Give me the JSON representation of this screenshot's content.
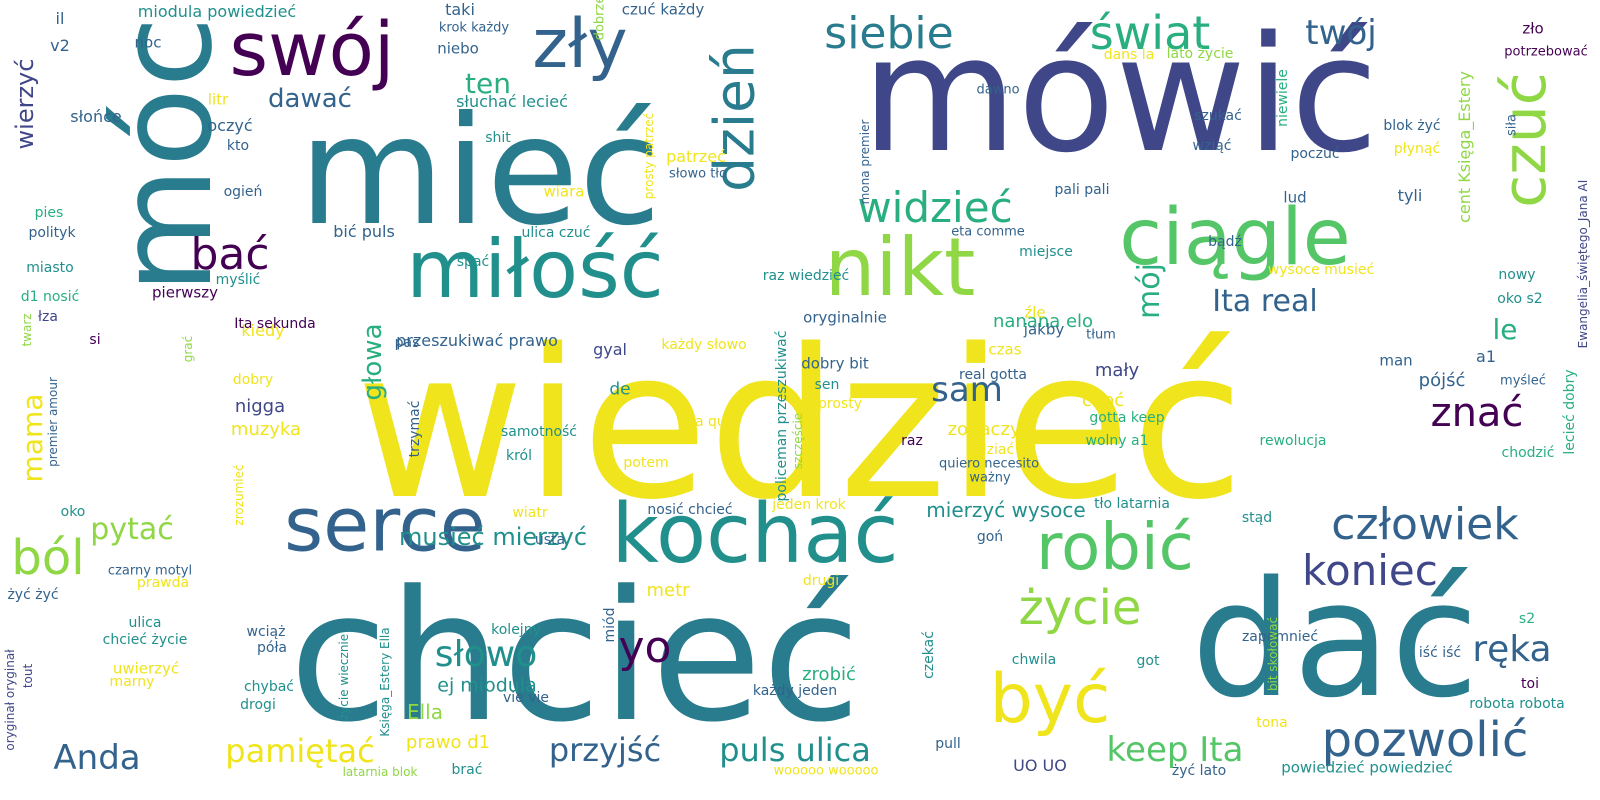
{
  "palette": {
    "yellow": "#f0e41c",
    "lime": "#8fd744",
    "green": "#55c667",
    "sea": "#29af7f",
    "teal": "#21908d",
    "steel": "#287c8e",
    "blue": "#33638d",
    "indigo": "#3f4788",
    "violet": "#440154"
  },
  "words": [
    {
      "t": "wiedzieć",
      "c": "yellow",
      "s": 1.0
    },
    {
      "t": "chcieć",
      "c": "steel",
      "s": 0.85
    },
    {
      "t": "mówić",
      "c": "indigo",
      "s": 0.76
    },
    {
      "t": "dać",
      "c": "steel",
      "s": 0.7
    },
    {
      "t": "mieć",
      "c": "steel",
      "s": 0.66
    },
    {
      "t": "móc",
      "c": "steel",
      "s": 0.52
    },
    {
      "t": "miłość",
      "c": "teal",
      "s": 0.36
    },
    {
      "t": "kochać",
      "c": "teal",
      "s": 0.36
    },
    {
      "t": "serce",
      "c": "blue",
      "s": 0.34
    },
    {
      "t": "nikt",
      "c": "lime",
      "s": 0.34
    },
    {
      "t": "ciągle",
      "c": "green",
      "s": 0.33
    },
    {
      "t": "swój",
      "c": "violet",
      "s": 0.31
    },
    {
      "t": "zły",
      "c": "blue",
      "s": 0.29
    },
    {
      "t": "być",
      "c": "yellow",
      "s": 0.29
    },
    {
      "t": "robić",
      "c": "green",
      "s": 0.28
    },
    {
      "t": "czuć",
      "c": "lime",
      "s": 0.26
    },
    {
      "t": "dzień",
      "c": "steel",
      "s": 0.25
    },
    {
      "t": "świat",
      "c": "sea",
      "s": 0.2
    },
    {
      "t": "pozwolić",
      "c": "blue",
      "s": 0.2
    },
    {
      "t": "życie",
      "c": "lime",
      "s": 0.2
    },
    {
      "t": "ból",
      "c": "lime",
      "s": 0.2
    },
    {
      "t": "siebie",
      "c": "steel",
      "s": 0.18
    },
    {
      "t": "człowiek",
      "c": "blue",
      "s": 0.18
    },
    {
      "t": "koniec",
      "c": "indigo",
      "s": 0.18
    },
    {
      "t": "widzieć",
      "c": "sea",
      "s": 0.18
    },
    {
      "t": "bać",
      "c": "violet",
      "s": 0.18
    },
    {
      "t": "yo",
      "c": "violet",
      "s": 0.18
    },
    {
      "t": "znać",
      "c": "violet",
      "s": 0.17
    },
    {
      "t": "słowo",
      "c": "teal",
      "s": 0.15
    },
    {
      "t": "keep Ita",
      "c": "green",
      "s": 0.14
    },
    {
      "t": "puls ulica",
      "c": "teal",
      "s": 0.14
    },
    {
      "t": "przyjść",
      "c": "blue",
      "s": 0.14
    },
    {
      "t": "pamiętać",
      "c": "yellow",
      "s": 0.14
    },
    {
      "t": "ręka",
      "c": "blue",
      "s": 0.14
    },
    {
      "t": "Anda",
      "c": "blue",
      "s": 0.14
    },
    {
      "t": "twój",
      "c": "blue",
      "s": 0.13
    },
    {
      "t": "Ita real",
      "c": "blue",
      "s": 0.13
    },
    {
      "t": "sam",
      "c": "blue",
      "s": 0.13
    },
    {
      "t": "mój",
      "c": "sea",
      "s": 0.13
    },
    {
      "t": "ten",
      "c": "sea",
      "s": 0.12
    },
    {
      "t": "pytać",
      "c": "lime",
      "s": 0.12
    },
    {
      "t": "głowa",
      "c": "sea",
      "s": 0.12
    },
    {
      "t": "mama",
      "c": "yellow",
      "s": 0.12
    },
    {
      "t": "le",
      "c": "sea",
      "s": 0.11
    },
    {
      "t": "musieć mierzyć",
      "c": "teal",
      "s": 0.11
    },
    {
      "t": "dawać",
      "c": "blue",
      "s": 0.1
    },
    {
      "t": "wierzyć",
      "c": "indigo",
      "s": 0.1
    },
    {
      "t": "mierzyć wysoce",
      "c": "teal",
      "s": 0.09
    },
    {
      "t": "ej miodula",
      "c": "teal",
      "s": 0.08
    },
    {
      "t": "nanana elo",
      "c": "sea",
      "s": 0.08
    },
    {
      "t": "Ella",
      "c": "lime",
      "s": 0.08
    },
    {
      "t": "zobaczyć",
      "c": "yellow",
      "s": 0.08
    },
    {
      "t": "mały",
      "c": "indigo",
      "s": 0.08
    },
    {
      "t": "choć",
      "c": "yellow",
      "s": 0.08
    },
    {
      "t": "nigga",
      "c": "indigo",
      "s": 0.08
    },
    {
      "t": "muzyka",
      "c": "yellow",
      "s": 0.08
    },
    {
      "t": "zrobić",
      "c": "sea",
      "s": 0.08
    },
    {
      "t": "prawo d1",
      "c": "yellow",
      "s": 0.08
    },
    {
      "t": "metr",
      "c": "yellow",
      "s": 0.08
    },
    {
      "t": "pójść",
      "c": "blue",
      "s": 0.08
    },
    {
      "t": "miodula powiedzieć",
      "c": "teal",
      "s": 0.06
    },
    {
      "t": "słuchać lecieć",
      "c": "teal",
      "s": 0.06
    },
    {
      "t": "niebo",
      "c": "blue",
      "s": 0.06
    },
    {
      "t": "taki",
      "c": "blue",
      "s": 0.06
    },
    {
      "t": "krok każdy",
      "c": "blue",
      "s": 0.05
    },
    {
      "t": "czuć każdy",
      "c": "blue",
      "s": 0.05
    },
    {
      "t": "dobrze",
      "c": "lime",
      "s": 0.05
    },
    {
      "t": "patrzeć",
      "c": "yellow",
      "s": 0.06
    },
    {
      "t": "słowo tło",
      "c": "blue",
      "s": 0.05
    },
    {
      "t": "wiara",
      "c": "yellow",
      "s": 0.06
    },
    {
      "t": "ulica czuć",
      "c": "teal",
      "s": 0.05
    },
    {
      "t": "spać",
      "c": "teal",
      "s": 0.05
    },
    {
      "t": "bić puls",
      "c": "blue",
      "s": 0.06
    },
    {
      "t": "kiedy",
      "c": "yellow",
      "s": 0.06
    },
    {
      "t": "Ita sekunda",
      "c": "violet",
      "s": 0.05
    },
    {
      "t": "przeszukiwać prawo",
      "c": "blue",
      "s": 0.06
    },
    {
      "t": "gyal",
      "c": "indigo",
      "s": 0.06
    },
    {
      "t": "każdy słowo",
      "c": "yellow",
      "s": 0.05
    },
    {
      "t": "oryginalnie",
      "c": "blue",
      "s": 0.05
    },
    {
      "t": "raz wiedzieć",
      "c": "teal",
      "s": 0.05
    },
    {
      "t": "eta comme",
      "c": "blue",
      "s": 0.04
    },
    {
      "t": "miejsce",
      "c": "teal",
      "s": 0.05
    },
    {
      "t": "pali pali",
      "c": "blue",
      "s": 0.05
    },
    {
      "t": "dans la",
      "c": "yellow",
      "s": 0.05
    },
    {
      "t": "lato życie",
      "c": "lime",
      "s": 0.05
    },
    {
      "t": "dawno",
      "c": "blue",
      "s": 0.05
    },
    {
      "t": "mona premier",
      "c": "blue",
      "s": 0.04
    },
    {
      "t": "prosty patrzeć",
      "c": "yellow",
      "s": 0.04
    },
    {
      "t": "szukać",
      "c": "blue",
      "s": 0.05
    },
    {
      "t": "wziąć",
      "c": "blue",
      "s": 0.05
    },
    {
      "t": "niewiele",
      "c": "sea",
      "s": 0.05
    },
    {
      "t": "poczuć",
      "c": "blue",
      "s": 0.05
    },
    {
      "t": "lud",
      "c": "blue",
      "s": 0.05
    },
    {
      "t": "źle",
      "c": "yellow",
      "s": 0.05
    },
    {
      "t": "jakby",
      "c": "blue",
      "s": 0.05
    },
    {
      "t": "tłum",
      "c": "blue",
      "s": 0.04
    },
    {
      "t": "bądź",
      "c": "blue",
      "s": 0.05
    },
    {
      "t": "wysoce musieć",
      "c": "yellow",
      "s": 0.05
    },
    {
      "t": "tyli",
      "c": "blue",
      "s": 0.05
    },
    {
      "t": "cent Księga_Estery",
      "c": "lime",
      "s": 0.06
    },
    {
      "t": "a1",
      "c": "blue",
      "s": 0.06
    },
    {
      "t": "man",
      "c": "blue",
      "s": 0.05
    },
    {
      "t": "czas",
      "c": "yellow",
      "s": 0.05
    },
    {
      "t": "real gotta",
      "c": "blue",
      "s": 0.05
    },
    {
      "t": "dobry bit",
      "c": "blue",
      "s": 0.05
    },
    {
      "t": "sen",
      "c": "teal",
      "s": 0.05
    },
    {
      "t": "prosty",
      "c": "yellow",
      "s": 0.05
    },
    {
      "t": "de",
      "c": "teal",
      "s": 0.06
    },
    {
      "t": "gotta keep",
      "c": "sea",
      "s": 0.05
    },
    {
      "t": "wolny a1",
      "c": "sea",
      "s": 0.05
    },
    {
      "t": "dziać",
      "c": "yellow",
      "s": 0.05
    },
    {
      "t": "raz",
      "c": "violet",
      "s": 0.05
    },
    {
      "t": "quiero necesito",
      "c": "blue",
      "s": 0.05
    },
    {
      "t": "ważny",
      "c": "blue",
      "s": 0.05
    },
    {
      "t": "tło latarnia",
      "c": "teal",
      "s": 0.05
    },
    {
      "t": "Ella qui",
      "c": "yellow",
      "s": 0.05
    },
    {
      "t": "samotność",
      "c": "teal",
      "s": 0.05
    },
    {
      "t": "król",
      "c": "teal",
      "s": 0.05
    },
    {
      "t": "policeman przeszukiwać",
      "c": "teal",
      "s": 0.05
    },
    {
      "t": "szczęście",
      "c": "lime",
      "s": 0.04
    },
    {
      "t": "jeden krok",
      "c": "yellow",
      "s": 0.05
    },
    {
      "t": "nosić chcieć",
      "c": "blue",
      "s": 0.05
    },
    {
      "t": "potem",
      "c": "yellow",
      "s": 0.05
    },
    {
      "t": "stąd",
      "c": "teal",
      "s": 0.05
    },
    {
      "t": "goń",
      "c": "blue",
      "s": 0.05
    },
    {
      "t": "rewolucja",
      "c": "sea",
      "s": 0.05
    },
    {
      "t": "chodzić",
      "c": "sea",
      "s": 0.05
    },
    {
      "t": "lecieć dobry",
      "c": "sea",
      "s": 0.05
    },
    {
      "t": "myśleć",
      "c": "blue",
      "s": 0.04
    },
    {
      "t": "Ewangelia_świętego_Jana AI",
      "c": "indigo",
      "s": 0.04
    },
    {
      "t": "oko s2",
      "c": "teal",
      "s": 0.05
    },
    {
      "t": "nowy",
      "c": "teal",
      "s": 0.05
    },
    {
      "t": "zło",
      "c": "violet",
      "s": 0.05
    },
    {
      "t": "potrzebować",
      "c": "violet",
      "s": 0.05
    },
    {
      "t": "blok żyć",
      "c": "blue",
      "s": 0.05
    },
    {
      "t": "płynąć",
      "c": "yellow",
      "s": 0.05
    },
    {
      "t": "siła",
      "c": "blue",
      "s": 0.04
    },
    {
      "t": "il",
      "c": "blue",
      "s": 0.05
    },
    {
      "t": "v2",
      "c": "blue",
      "s": 0.05
    },
    {
      "t": "noc",
      "c": "blue",
      "s": 0.05
    },
    {
      "t": "słońce",
      "c": "blue",
      "s": 0.05
    },
    {
      "t": "litr",
      "c": "yellow",
      "s": 0.05
    },
    {
      "t": "oczyć",
      "c": "blue",
      "s": 0.05
    },
    {
      "t": "kto",
      "c": "blue",
      "s": 0.05
    },
    {
      "t": "shit",
      "c": "teal",
      "s": 0.05
    },
    {
      "t": "ogień",
      "c": "blue",
      "s": 0.05
    },
    {
      "t": "pies",
      "c": "sea",
      "s": 0.05
    },
    {
      "t": "polityk",
      "c": "blue",
      "s": 0.05
    },
    {
      "t": "miasto",
      "c": "teal",
      "s": 0.05
    },
    {
      "t": "myślić",
      "c": "teal",
      "s": 0.05
    },
    {
      "t": "pierwszy",
      "c": "violet",
      "s": 0.05
    },
    {
      "t": "d1 nosić",
      "c": "sea",
      "s": 0.05
    },
    {
      "t": "łza",
      "c": "indigo",
      "s": 0.05
    },
    {
      "t": "twarz",
      "c": "lime",
      "s": 0.04
    },
    {
      "t": "si",
      "c": "violet",
      "s": 0.05
    },
    {
      "t": "grać",
      "c": "lime",
      "s": 0.04
    },
    {
      "t": "pas",
      "c": "blue",
      "s": 0.05
    },
    {
      "t": "dobry",
      "c": "yellow",
      "s": 0.05
    },
    {
      "t": "trzymać",
      "c": "blue",
      "s": 0.05
    },
    {
      "t": "premier amour",
      "c": "blue",
      "s": 0.04
    },
    {
      "t": "oko",
      "c": "teal",
      "s": 0.05
    },
    {
      "t": "zrozumieć",
      "c": "yellow",
      "s": 0.04
    },
    {
      "t": "wiatr",
      "c": "yellow",
      "s": 0.05
    },
    {
      "t": "usta",
      "c": "blue",
      "s": 0.05
    },
    {
      "t": "prawda",
      "c": "yellow",
      "s": 0.05
    },
    {
      "t": "czarny motyl",
      "c": "blue",
      "s": 0.05
    },
    {
      "t": "żyć żyć",
      "c": "blue",
      "s": 0.05
    },
    {
      "t": "ulica",
      "c": "teal",
      "s": 0.05
    },
    {
      "t": "chcieć życie",
      "c": "teal",
      "s": 0.05
    },
    {
      "t": "uwierzyć",
      "c": "yellow",
      "s": 0.05
    },
    {
      "t": "marny",
      "c": "yellow",
      "s": 0.05
    },
    {
      "t": "wciąż",
      "c": "blue",
      "s": 0.05
    },
    {
      "t": "póła",
      "c": "blue",
      "s": 0.05
    },
    {
      "t": "chybać",
      "c": "teal",
      "s": 0.05
    },
    {
      "t": "drogi",
      "c": "teal",
      "s": 0.05
    },
    {
      "t": "oryginał oryginał",
      "c": "indigo",
      "s": 0.04
    },
    {
      "t": "tout",
      "c": "indigo",
      "s": 0.04
    },
    {
      "t": "życie wiecznie",
      "c": "teal",
      "s": 0.04
    },
    {
      "t": "Księga_Estery Ella",
      "c": "teal",
      "s": 0.04
    },
    {
      "t": "kolejny",
      "c": "teal",
      "s": 0.05
    },
    {
      "t": "miód",
      "c": "blue",
      "s": 0.05
    },
    {
      "t": "drugi",
      "c": "yellow",
      "s": 0.05
    },
    {
      "t": "vie vie",
      "c": "blue",
      "s": 0.05
    },
    {
      "t": "każdy jeden",
      "c": "blue",
      "s": 0.04
    },
    {
      "t": "czekać",
      "c": "teal",
      "s": 0.05
    },
    {
      "t": "chwila",
      "c": "teal",
      "s": 0.05
    },
    {
      "t": "zapomnieć",
      "c": "blue",
      "s": 0.05
    },
    {
      "t": "got",
      "c": "teal",
      "s": 0.05
    },
    {
      "t": "bit skołować",
      "c": "lime",
      "s": 0.04
    },
    {
      "t": "s2",
      "c": "sea",
      "s": 0.05
    },
    {
      "t": "iść iść",
      "c": "blue",
      "s": 0.05
    },
    {
      "t": "toi",
      "c": "violet",
      "s": 0.05
    },
    {
      "t": "robota robota",
      "c": "teal",
      "s": 0.05
    },
    {
      "t": "tona",
      "c": "yellow",
      "s": 0.05
    },
    {
      "t": "UO UO",
      "c": "indigo",
      "s": 0.05
    },
    {
      "t": "pull",
      "c": "blue",
      "s": 0.05
    },
    {
      "t": "brać",
      "c": "teal",
      "s": 0.05
    },
    {
      "t": "latarnia blok",
      "c": "lime",
      "s": 0.04
    },
    {
      "t": "wooooo wooooo",
      "c": "yellow",
      "s": 0.04
    },
    {
      "t": "żyć lato",
      "c": "blue",
      "s": 0.05
    },
    {
      "t": "powiedzieć powiedzieć",
      "c": "teal",
      "s": 0.05
    }
  ]
}
